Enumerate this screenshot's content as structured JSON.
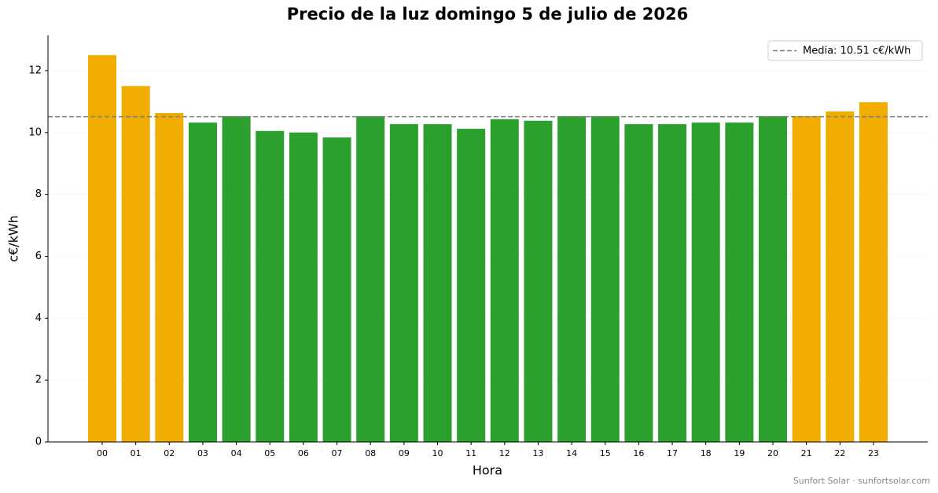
{
  "chart_data": {
    "type": "bar",
    "title": "Precio de la luz domingo 5 de julio de 2026",
    "x_label": "Hora",
    "y_label": "c€/kWh",
    "categories": [
      "00",
      "01",
      "02",
      "03",
      "04",
      "05",
      "06",
      "07",
      "08",
      "09",
      "10",
      "11",
      "12",
      "13",
      "14",
      "15",
      "16",
      "17",
      "18",
      "19",
      "20",
      "21",
      "22",
      "23"
    ],
    "values": [
      12.5,
      11.5,
      10.63,
      10.32,
      10.53,
      10.05,
      10.0,
      9.84,
      10.53,
      10.27,
      10.27,
      10.12,
      10.43,
      10.38,
      10.53,
      10.53,
      10.27,
      10.27,
      10.32,
      10.32,
      10.53,
      10.53,
      10.68,
      10.98
    ],
    "colors": [
      "#f0ad00",
      "#f0ad00",
      "#f0ad00",
      "#2ca02c",
      "#2ca02c",
      "#2ca02c",
      "#2ca02c",
      "#2ca02c",
      "#2ca02c",
      "#2ca02c",
      "#2ca02c",
      "#2ca02c",
      "#2ca02c",
      "#2ca02c",
      "#2ca02c",
      "#2ca02c",
      "#2ca02c",
      "#2ca02c",
      "#2ca02c",
      "#2ca02c",
      "#2ca02c",
      "#f0ad00",
      "#f0ad00",
      "#f0ad00"
    ],
    "mean": 10.51,
    "mean_label": "Media: 10.51 c€/kWh",
    "mean_color": "#808080",
    "ylim": [
      0,
      13.14
    ],
    "yticks": [
      0,
      2,
      4,
      6,
      8,
      10,
      12
    ],
    "grid": true,
    "legend": "upper right",
    "footer": "Sunfort Solar · sunfortsolar.com"
  }
}
